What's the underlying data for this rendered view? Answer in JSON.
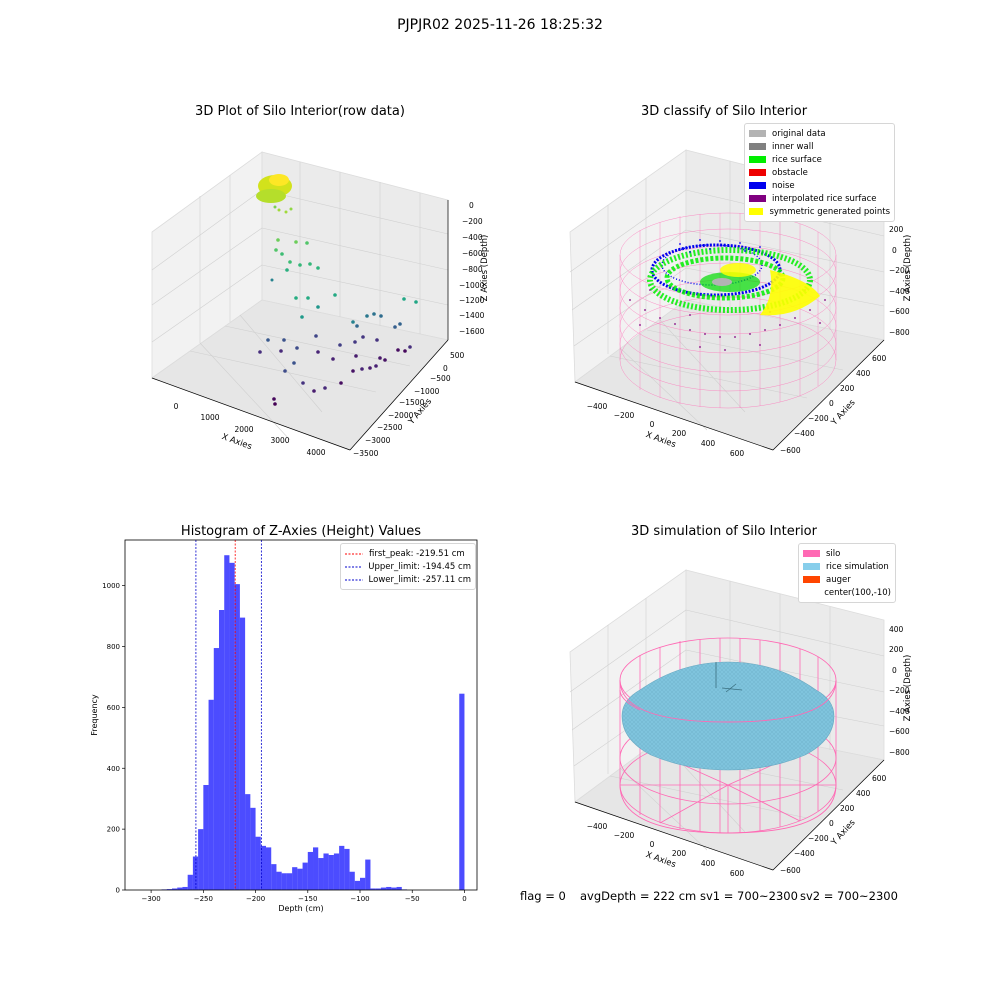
{
  "suptitle": "PJPJR02 2025-11-26 18:25:32",
  "panels": {
    "raw": {
      "title": "3D Plot of Silo Interior(row data)",
      "xlabel": "X Axies",
      "ylabel": "Y Axies",
      "zlabel": "Z Axies (Depth)",
      "xticks": [
        "0",
        "1000",
        "2000",
        "3000",
        "4000"
      ],
      "yticks": [
        "500",
        "0",
        "−500",
        "−1000",
        "−1500",
        "−2000",
        "−2500",
        "−3000",
        "−3500"
      ],
      "zticks": [
        "0",
        "−200",
        "−400",
        "−600",
        "−800",
        "−1000",
        "−1200",
        "−1400",
        "−1600"
      ]
    },
    "classify": {
      "title": "3D classify of Silo Interior",
      "xlabel": "X Axies",
      "ylabel": "Y Axies",
      "zlabel": "Z Axies (Depth)",
      "xticks": [
        "−400",
        "−200",
        "0",
        "200",
        "400",
        "600"
      ],
      "yticks": [
        "600",
        "400",
        "200",
        "0",
        "−200",
        "−400",
        "−600"
      ],
      "zticks": [
        "200",
        "0",
        "−200",
        "−400",
        "−600",
        "−800"
      ],
      "legend": [
        {
          "label": "original data",
          "color": "#b3b3b3"
        },
        {
          "label": "inner wall",
          "color": "#808080"
        },
        {
          "label": "rice surface",
          "color": "#00ee00"
        },
        {
          "label": "obstacle",
          "color": "#ee0000"
        },
        {
          "label": "noise",
          "color": "#0000ee"
        },
        {
          "label": "interpolated rice surface",
          "color": "#800080"
        },
        {
          "label": "symmetric generated points",
          "color": "#ffff00"
        }
      ]
    },
    "simulation": {
      "title": "3D simulation of Silo Interior",
      "xlabel": "X Axies",
      "ylabel": "Y Axies",
      "zlabel": "Z Axies (Depth)",
      "xticks": [
        "−400",
        "−200",
        "0",
        "200",
        "400",
        "600"
      ],
      "yticks": [
        "600",
        "400",
        "200",
        "0",
        "−200",
        "−400",
        "−600"
      ],
      "zticks": [
        "400",
        "200",
        "0",
        "−200",
        "−400",
        "−600",
        "−800"
      ],
      "legend": [
        {
          "label": "silo",
          "color": "#ff69b4"
        },
        {
          "label": "rice simulation",
          "color": "#87ceeb"
        },
        {
          "label": "auger",
          "color": "#ff4500"
        },
        {
          "label": "center(100,-10)",
          "color": ""
        }
      ]
    }
  },
  "chart_data": {
    "type": "bar",
    "title": "Histogram of Z-Axies (Height) Values",
    "xlabel": "Depth (cm)",
    "ylabel": "Frequency",
    "xlim": [
      -325,
      12
    ],
    "ylim": [
      0,
      1150
    ],
    "xticks": [
      -300,
      -250,
      -200,
      -150,
      -100,
      -50,
      0
    ],
    "yticks": [
      0,
      200,
      400,
      600,
      800,
      1000
    ],
    "bin_width": 5,
    "color": "#0000ff",
    "bins": [
      {
        "x": -290,
        "value": 2
      },
      {
        "x": -285,
        "value": 3
      },
      {
        "x": -280,
        "value": 5
      },
      {
        "x": -275,
        "value": 8
      },
      {
        "x": -270,
        "value": 10
      },
      {
        "x": -265,
        "value": 50
      },
      {
        "x": -260,
        "value": 110
      },
      {
        "x": -255,
        "value": 200
      },
      {
        "x": -250,
        "value": 345
      },
      {
        "x": -245,
        "value": 625
      },
      {
        "x": -240,
        "value": 795
      },
      {
        "x": -235,
        "value": 920
      },
      {
        "x": -230,
        "value": 1100
      },
      {
        "x": -225,
        "value": 1075
      },
      {
        "x": -220,
        "value": 1005
      },
      {
        "x": -215,
        "value": 895
      },
      {
        "x": -210,
        "value": 315
      },
      {
        "x": -205,
        "value": 270
      },
      {
        "x": -200,
        "value": 175
      },
      {
        "x": -195,
        "value": 145
      },
      {
        "x": -190,
        "value": 140
      },
      {
        "x": -185,
        "value": 85
      },
      {
        "x": -180,
        "value": 60
      },
      {
        "x": -175,
        "value": 55
      },
      {
        "x": -170,
        "value": 55
      },
      {
        "x": -165,
        "value": 75
      },
      {
        "x": -160,
        "value": 70
      },
      {
        "x": -155,
        "value": 90
      },
      {
        "x": -150,
        "value": 125
      },
      {
        "x": -145,
        "value": 140
      },
      {
        "x": -140,
        "value": 105
      },
      {
        "x": -135,
        "value": 120
      },
      {
        "x": -130,
        "value": 115
      },
      {
        "x": -125,
        "value": 120
      },
      {
        "x": -120,
        "value": 145
      },
      {
        "x": -115,
        "value": 135
      },
      {
        "x": -110,
        "value": 60
      },
      {
        "x": -105,
        "value": 30
      },
      {
        "x": -100,
        "value": 40
      },
      {
        "x": -95,
        "value": 100
      },
      {
        "x": -90,
        "value": 5
      },
      {
        "x": -85,
        "value": 5
      },
      {
        "x": -80,
        "value": 8
      },
      {
        "x": -75,
        "value": 10
      },
      {
        "x": -70,
        "value": 8
      },
      {
        "x": -65,
        "value": 10
      },
      {
        "x": -60,
        "value": 2
      },
      {
        "x": -5,
        "value": 645
      }
    ],
    "vlines": [
      {
        "label": "first_peak: -219.51 cm",
        "x": -219.51,
        "color": "#ff0000"
      },
      {
        "label": "Upper_limit: -194.45 cm",
        "x": -194.45,
        "color": "#0000cc"
      },
      {
        "label": "Lower_limit: -257.11 cm",
        "x": -257.11,
        "color": "#0000cc"
      }
    ]
  },
  "footer": {
    "flag": "flag = 0",
    "avg": "avgDepth = 222 cm",
    "sv1": "sv1 = 700~2300",
    "sv2": "sv2 = 700~2300"
  }
}
